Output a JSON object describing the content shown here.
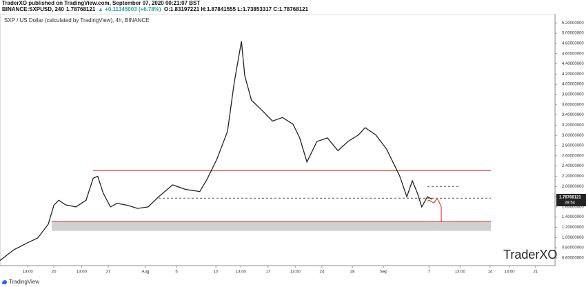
{
  "header": {
    "publisher": "TraderXO published on TradingView.com, September 07, 2020 00:21:07 BST",
    "symbol": "BINANCE:SXPUSD, 240",
    "last": "1.78768121",
    "change": "▲ +0.11345003 (+6.78%)",
    "ohlc": "O:1.83197221  H:1.87841555  L:1.73853317  C:1.78768121"
  },
  "chart_data": {
    "type": "line",
    "title": "SXP / US Dollar (calculated by TradingView), 4h, BINANCE",
    "color": "#222222",
    "x": [
      0,
      2.5,
      5,
      6.8,
      8.7,
      9.7,
      10.6,
      11.8,
      13.7,
      15.5,
      16.8,
      17.6,
      18.6,
      19.9,
      21.1,
      23,
      24.8,
      26.7,
      28.6,
      31.1,
      33.5,
      36,
      37.3,
      39.1,
      41,
      42.2,
      43.5,
      44.1,
      45.3,
      47.2,
      49.1,
      50.9,
      52.8,
      54,
      55.3,
      57.1,
      59,
      60.9,
      62.7,
      64.6,
      65.8,
      67.7,
      69.6,
      71.1,
      72,
      73.3,
      74.3,
      75.2,
      76,
      77,
      77.9
    ],
    "values": [
      0.55,
      0.76,
      0.9,
      0.99,
      1.26,
      1.63,
      1.73,
      1.64,
      1.6,
      1.73,
      2.16,
      2.2,
      1.87,
      1.6,
      1.67,
      1.63,
      1.57,
      1.6,
      1.8,
      2.03,
      1.94,
      1.9,
      2.14,
      2.54,
      3.08,
      4.03,
      4.84,
      4.17,
      3.69,
      3.49,
      3.28,
      3.35,
      3.22,
      2.95,
      2.48,
      2.88,
      2.95,
      2.7,
      2.88,
      3.01,
      3.15,
      3.01,
      2.74,
      2.41,
      2.21,
      1.8,
      2.11,
      1.87,
      1.6,
      1.8,
      1.75
    ],
    "xlim": [
      0,
      100
    ],
    "ylim": [
      0.45,
      5.38
    ],
    "xticks": [
      {
        "value": 5,
        "label": "13:00"
      },
      {
        "value": 9.7,
        "label": "20"
      },
      {
        "value": 14.7,
        "label": "13:00"
      },
      {
        "value": 19.5,
        "label": "27"
      },
      {
        "value": 26.2,
        "label": "Aug"
      },
      {
        "value": 31.8,
        "label": "5"
      },
      {
        "value": 38.9,
        "label": "10"
      },
      {
        "value": 43.4,
        "label": "13:00"
      },
      {
        "value": 48.3,
        "label": "17"
      },
      {
        "value": 53.2,
        "label": "13:00"
      },
      {
        "value": 58,
        "label": "24"
      },
      {
        "value": 63.5,
        "label": "28"
      },
      {
        "value": 69.1,
        "label": "Sep"
      },
      {
        "value": 77.3,
        "label": "7"
      },
      {
        "value": 82.9,
        "label": "13:00"
      },
      {
        "value": 88.3,
        "label": "14"
      },
      {
        "value": 91.8,
        "label": "13:00"
      },
      {
        "value": 96.5,
        "label": "21"
      }
    ],
    "yticks": [
      {
        "value": 0.6,
        "label": "0.60000000"
      },
      {
        "value": 0.8,
        "label": "0.80000000"
      },
      {
        "value": 1,
        "label": "1.00000000"
      },
      {
        "value": 1.2,
        "label": "1.20000000"
      },
      {
        "value": 1.4,
        "label": "1.40000000"
      },
      {
        "value": 1.6,
        "label": "1.60000000"
      },
      {
        "value": 1.8,
        "label": "1.80000000"
      },
      {
        "value": 2,
        "label": "2.00000000"
      },
      {
        "value": 2.2,
        "label": "2.20000000"
      },
      {
        "value": 2.4,
        "label": "2.40000000"
      },
      {
        "value": 2.6,
        "label": "2.60000000"
      },
      {
        "value": 2.8,
        "label": "2.80000000"
      },
      {
        "value": 3,
        "label": "3.00000000"
      },
      {
        "value": 3.2,
        "label": "3.20000000"
      },
      {
        "value": 3.4,
        "label": "3.40000000"
      },
      {
        "value": 3.6,
        "label": "3.60000000"
      },
      {
        "value": 3.8,
        "label": "3.80000000"
      },
      {
        "value": 4,
        "label": "4.00000000"
      },
      {
        "value": 4.2,
        "label": "4.20000000"
      },
      {
        "value": 4.4,
        "label": "4.40000000"
      },
      {
        "value": 4.6,
        "label": "4.60000000"
      },
      {
        "value": 4.8,
        "label": "4.80000000"
      },
      {
        "value": 5,
        "label": "5.00000000"
      },
      {
        "value": 5.2,
        "label": "5.20000000"
      }
    ],
    "levels": [
      {
        "value": 2.31,
        "color": "#e53935"
      },
      {
        "value": 1.31,
        "color": "#e53935"
      }
    ],
    "zone": [
      1.13,
      1.31
    ],
    "dashed_levels": [
      1.77,
      2.0
    ],
    "last_price": {
      "value": 1.78768121,
      "label": "1.78768121"
    },
    "countdown": "28:54",
    "watermark": "TraderXO"
  },
  "footer": {
    "brand": "TradingView"
  }
}
